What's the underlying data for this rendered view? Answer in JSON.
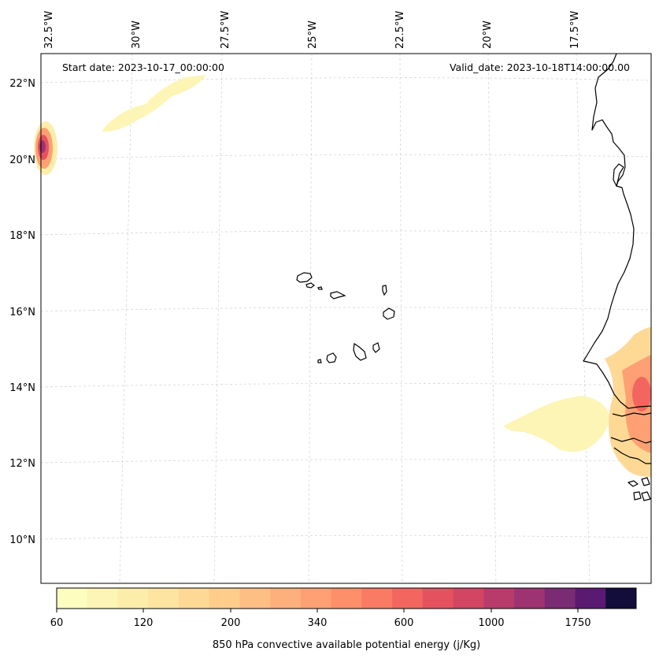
{
  "annotations": {
    "start_date": "Start date: 2023-10-17_00:00:00",
    "valid_date": "Valid_date: 2023-10-18T14:00:00.00"
  },
  "longitude_labels": [
    "32.5°W",
    "30°W",
    "27.5°W",
    "25°W",
    "22.5°W",
    "20°W",
    "17.5°W"
  ],
  "latitude_labels": [
    "22°N",
    "20°N",
    "18°N",
    "16°N",
    "14°N",
    "12°N",
    "10°N"
  ],
  "colorbar": {
    "label": "850 hPa convective available potential energy (j/Kg)",
    "tick_labels": [
      "60",
      "120",
      "200",
      "340",
      "600",
      "1000",
      "1750"
    ],
    "colors": [
      "#fcfdbf",
      "#fcf5b5",
      "#fcedab",
      "#fde4a0",
      "#fed996",
      "#fecd8c",
      "#febf84",
      "#feb07c",
      "#fea073",
      "#fd8f6a",
      "#f97b63",
      "#f2665f",
      "#e5525f",
      "#d24563",
      "#b83c6b",
      "#9d3371",
      "#7b2a74",
      "#5a1a72",
      "#120d3a"
    ]
  },
  "map": {
    "projection": "conic",
    "extent": {
      "lon": [
        -32.7,
        -16.2
      ],
      "lat": [
        8.9,
        22.8
      ]
    },
    "field": "850 hPa convective available potential energy",
    "units": "j/Kg",
    "features": [
      "Cape Verde islands",
      "West African coastline"
    ]
  }
}
